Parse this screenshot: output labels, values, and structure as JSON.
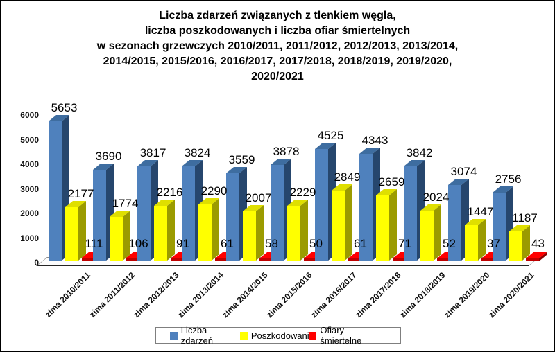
{
  "chart_data": {
    "type": "bar",
    "style": "3d-clustered",
    "title": "Liczba zdarzeń związanych z tlenkiem węgla, liczba poszkodowanych i liczba ofiar śmiertelnych w sezonach grzewczych 2010/2011, 2011/2012, 2012/2013, 2013/2014, 2014/2015, 2015/2016, 2016/2017, 2017/2018, 2018/2019, 2019/2020, 2020/2021",
    "title_lines": [
      "Liczba zdarzeń związanych z tlenkiem węgla,",
      "liczba poszkodowanych i liczba ofiar śmiertelnych",
      "w sezonach grzewczych 2010/2011, 2011/2012, 2012/2013, 2013/2014,",
      "2014/2015, 2015/2016, 2016/2017, 2017/2018, 2018/2019, 2019/2020,",
      "2020/2021"
    ],
    "categories": [
      "zima 2010/2011",
      "zima 2011/2012",
      "zima 2012/2013",
      "zima 2013/2014",
      "zima 2014/2015",
      "zima 2015/2016",
      "zima 2016/2017",
      "zima 2017/2018",
      "zima 2018/2019",
      "zima 2019/2020",
      "zima 2020/2021"
    ],
    "series": [
      {
        "name": "Liczba zdarzeń",
        "color_front": "#4F81BD",
        "color_side": "#26466D",
        "color_top": "#3E6DA0",
        "values": [
          5653,
          3690,
          3817,
          3824,
          3559,
          3878,
          4525,
          4343,
          3842,
          3074,
          2756
        ]
      },
      {
        "name": "Poszkodowani",
        "color_front": "#FFFF00",
        "color_side": "#9B9B00",
        "color_top": "#DFDF00",
        "values": [
          2177,
          1774,
          2216,
          2290,
          2007,
          2229,
          2849,
          2659,
          2024,
          1447,
          1187
        ]
      },
      {
        "name": "Ofiary śmiertelne",
        "color_front": "#C00000",
        "color_side": "#8E0000",
        "color_top": "#FF0000",
        "values": [
          111,
          106,
          91,
          61,
          58,
          50,
          61,
          71,
          52,
          37,
          43
        ]
      }
    ],
    "legend": [
      "Liczba zdarzeń",
      "Poszkodowani",
      "Ofiary śmiertelne"
    ],
    "legend_colors": [
      "#4F81BD",
      "#FFFF00",
      "#FF0000"
    ],
    "legend_position": "bottom",
    "y_ticks": [
      0,
      1000,
      2000,
      3000,
      4000,
      5000,
      6000
    ],
    "ylim": [
      0,
      6000
    ],
    "grid": false,
    "data_labels": true
  }
}
